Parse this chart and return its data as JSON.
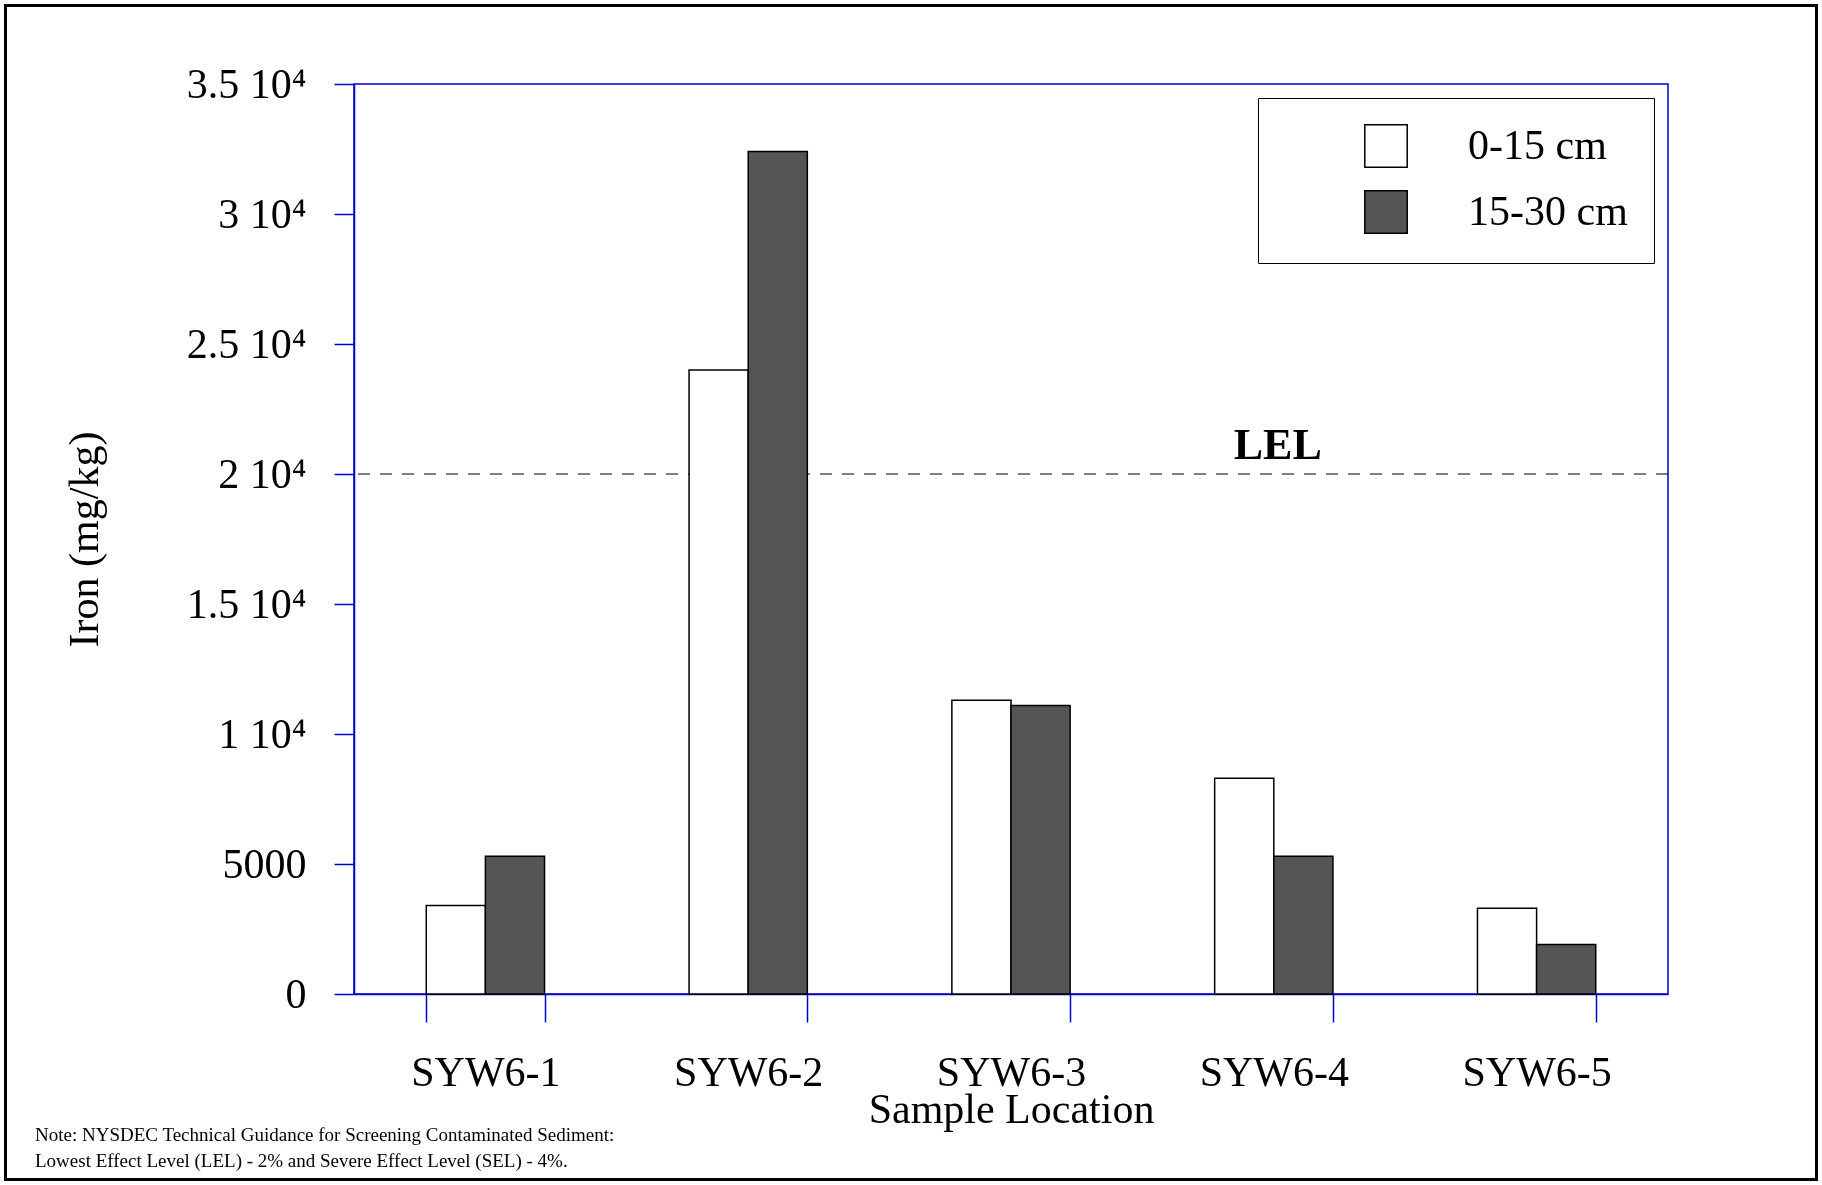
{
  "chart_data": {
    "type": "bar",
    "xlabel": "Sample Location",
    "ylabel": "Iron (mg/kg)",
    "categories": [
      "SYW6-1",
      "SYW6-2",
      "SYW6-3",
      "SYW6-4",
      "SYW6-5"
    ],
    "series": [
      {
        "name": "0-15 cm",
        "color": "#ffffff",
        "values": [
          3400,
          24000,
          11300,
          8300,
          3300
        ]
      },
      {
        "name": "15-30 cm",
        "color": "#555555",
        "values": [
          5300,
          32400,
          11100,
          5300,
          1900
        ]
      }
    ],
    "ylim": [
      0,
      35000
    ],
    "yticks": [
      0,
      5000,
      {
        "value": 10000,
        "label": "1 10⁴"
      },
      {
        "value": 15000,
        "label": "1.5 10⁴"
      },
      {
        "value": 20000,
        "label": "2 10⁴"
      },
      {
        "value": 25000,
        "label": "2.5 10⁴"
      },
      {
        "value": 30000,
        "label": "3 10⁴"
      },
      {
        "value": 35000,
        "label": "3.5 10⁴"
      }
    ],
    "ref_lines": [
      {
        "axis": "y",
        "value": 20000,
        "label": "LEL",
        "line_style": "dashed",
        "color": "#000000"
      }
    ],
    "legend": "top right",
    "annotations": [
      "Note:  NYSDEC Technical Guidance for Screening Contaminated Sediment:",
      "Lowest Effect Level (LEL) - 2% and Severe Effect Level (SEL) - 4%."
    ]
  }
}
